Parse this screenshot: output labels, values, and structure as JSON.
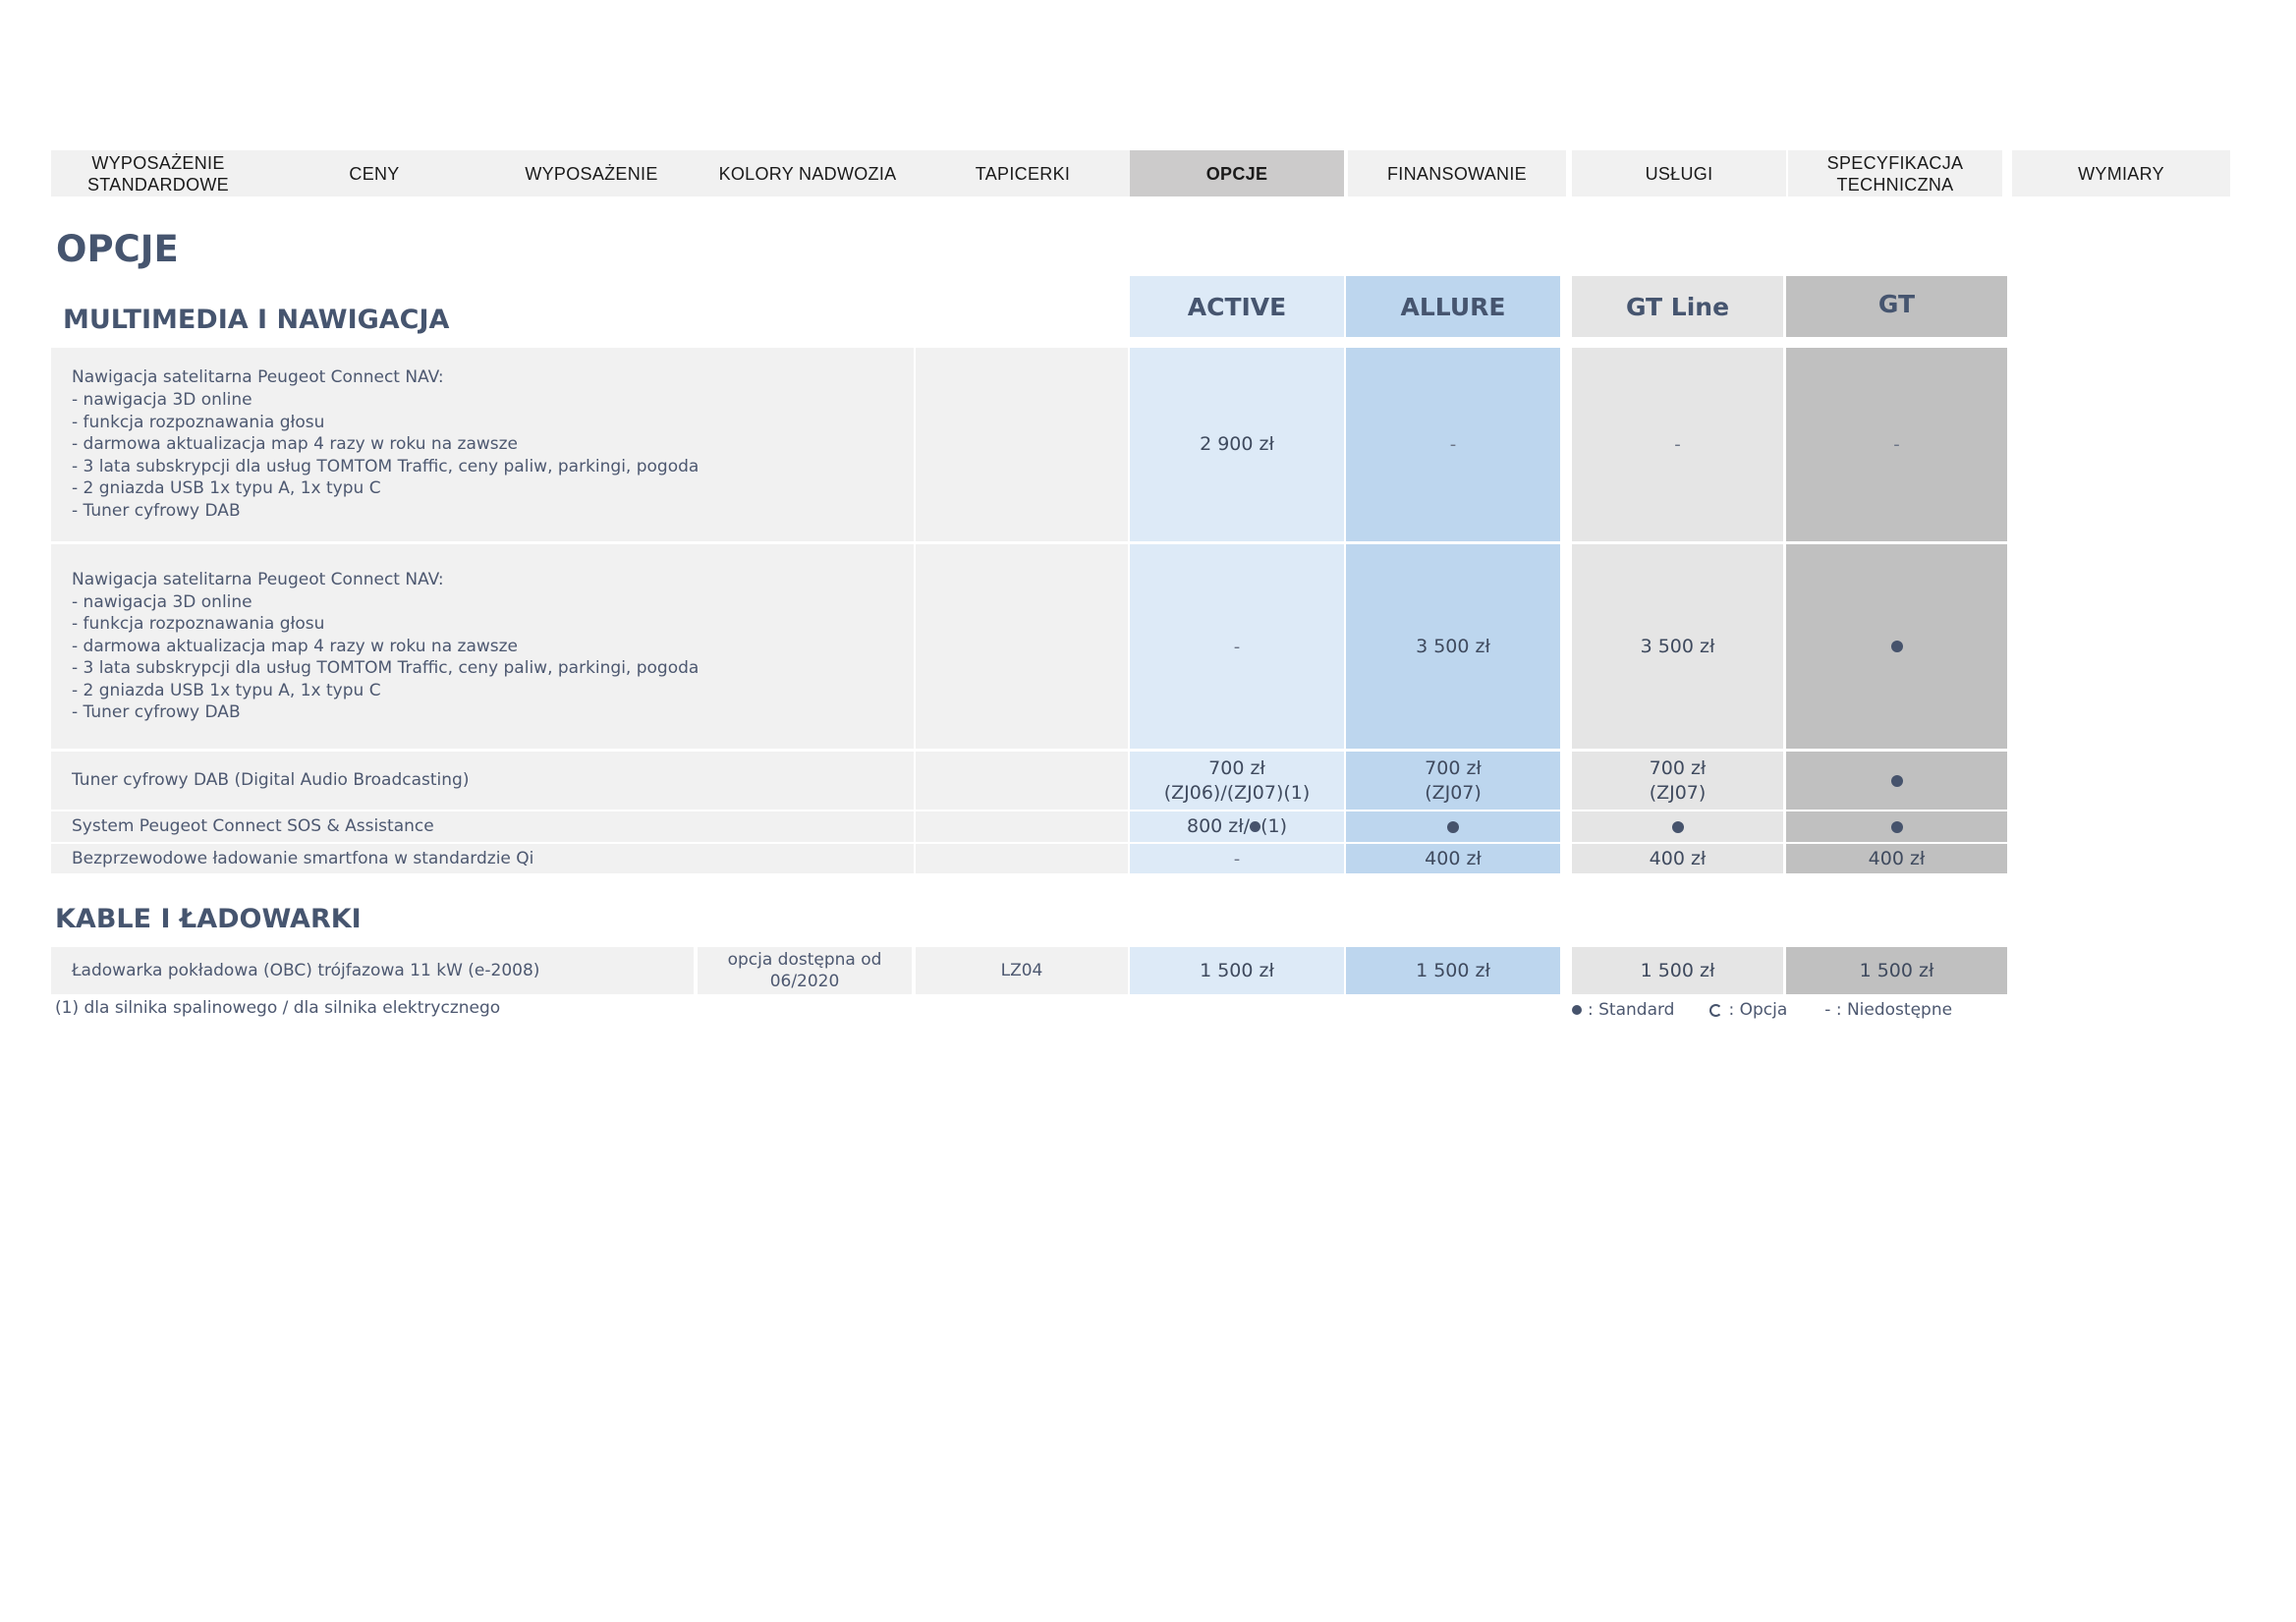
{
  "nav": {
    "tabs": [
      {
        "label": "WYPOSAŻENIE\nSTANDARDOWE"
      },
      {
        "label": "CENY"
      },
      {
        "label": "WYPOSAŻENIE"
      },
      {
        "label": "KOLORY NADWOZIA"
      },
      {
        "label": "TAPICERKI"
      },
      {
        "label": "OPCJE"
      },
      {
        "label": "FINANSOWANIE"
      },
      {
        "label": "USŁUGI"
      },
      {
        "label": "SPECYFIKACJA\nTECHNICZNA"
      },
      {
        "label": "WYMIARY"
      }
    ],
    "active_tab": "OPCJE"
  },
  "page_title": "OPCJE",
  "section1": {
    "title": "MULTIMEDIA I NAWIGACJA",
    "columns": [
      "ACTIVE",
      "ALLURE",
      "GT Line",
      "GT"
    ],
    "rows": [
      {
        "lines": [
          "Nawigacja satelitarna Peugeot Connect NAV:",
          "- nawigacja 3D online",
          "- funkcja rozpoznawania głosu",
          "- darmowa aktualizacja map 4 razy w roku na zawsze",
          "- 3 lata subskrypcji dla usług TOMTOM Traffic, ceny paliw, parkingi, pogoda",
          "- 2 gniazda USB 1x typu A, 1x typu C",
          "- Tuner cyfrowy DAB"
        ],
        "active": "2 900 zł",
        "allure": "-",
        "gtline": "-",
        "gt": "-"
      },
      {
        "lines": [
          "Nawigacja satelitarna Peugeot Connect NAV:",
          "- nawigacja 3D online",
          "- funkcja rozpoznawania głosu",
          "- darmowa aktualizacja map 4 razy w roku na zawsze",
          "- 3 lata subskrypcji dla usług TOMTOM Traffic, ceny paliw, parkingi, pogoda",
          "- 2 gniazda USB 1x typu A, 1x typu C",
          "- Tuner cyfrowy DAB"
        ],
        "active": "-",
        "allure": "3 500 zł",
        "gtline": "3 500 zł",
        "gt": "●"
      },
      {
        "lines": [
          "Tuner cyfrowy DAB (Digital Audio Broadcasting)"
        ],
        "active": "700 zł\n(ZJ06)/(ZJ07)(1)",
        "allure": "700 zł\n(ZJ07)",
        "gtline": "700 zł\n(ZJ07)",
        "gt": "●"
      },
      {
        "lines": [
          "System Peugeot Connect SOS & Assistance"
        ],
        "active_prefix": "800 zł/",
        "active_suffix": "(1)",
        "allure": "●",
        "gtline": "●",
        "gt": "●"
      },
      {
        "lines": [
          "Bezprzewodowe ładowanie smartfona w standardzie Qi"
        ],
        "active": "-",
        "allure": "400 zł",
        "gtline": "400 zł",
        "gt": "400 zł"
      }
    ]
  },
  "section2": {
    "title": "KABLE I ŁADOWARKI",
    "rows": [
      {
        "desc": "Ładowarka pokładowa (OBC) trójfazowa 11 kW (e-2008)",
        "availability": "opcja dostępna od\n06/2020",
        "code": "LZ04",
        "active": "1 500 zł",
        "allure": "1 500 zł",
        "gtline": "1 500 zł",
        "gt": "1 500 zł"
      }
    ]
  },
  "footnote": "(1) dla silnika spalinowego / dla silnika elektrycznego",
  "legend": {
    "standard": ": Standard",
    "option": ": Opcja",
    "unavailable": "- : Niedostępne"
  },
  "colors": {
    "active_col": "#ddeaf7",
    "allure_col": "#bdd6ee",
    "gtline_col": "#e5e5e5",
    "gt_col": "#c0c0c0",
    "title": "#46556f"
  }
}
